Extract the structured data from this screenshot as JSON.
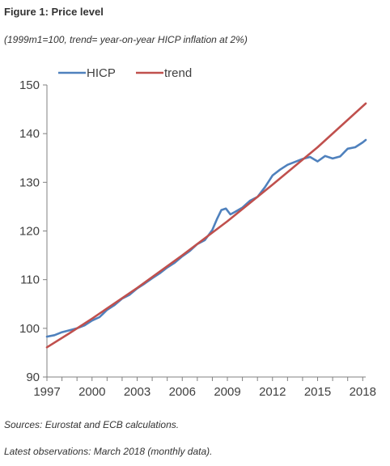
{
  "figure": {
    "title": "Figure 1: Price level",
    "subtitle": "(1999m1=100, trend= year-on-year HICP inflation at 2%)",
    "source": "Sources: Eurostat and ECB calculations.",
    "latest": "Latest observations: March 2018 (monthly data)."
  },
  "colors": {
    "hicp": "#4f81bd",
    "trend": "#c0504d",
    "axis": "#808080",
    "text": "#404040"
  },
  "chart_data": {
    "type": "line",
    "title": "",
    "xlabel": "",
    "ylabel": "",
    "xlim": [
      1997,
      2018.2
    ],
    "ylim": [
      90,
      150
    ],
    "xticks": [
      1997,
      2000,
      2003,
      2006,
      2009,
      2012,
      2015,
      2018
    ],
    "yticks": [
      90,
      100,
      110,
      120,
      130,
      140,
      150
    ],
    "grid": false,
    "legend": "top-left",
    "series": [
      {
        "name": "HICP",
        "x": [
          1997.0,
          1997.5,
          1998.0,
          1998.5,
          1999.0,
          1999.5,
          2000.0,
          2000.5,
          2001.0,
          2001.5,
          2002.0,
          2002.5,
          2003.0,
          2003.5,
          2004.0,
          2004.5,
          2005.0,
          2005.5,
          2006.0,
          2006.5,
          2007.0,
          2007.5,
          2008.0,
          2008.3,
          2008.6,
          2008.9,
          2009.2,
          2009.5,
          2010.0,
          2010.5,
          2011.0,
          2011.5,
          2012.0,
          2012.5,
          2013.0,
          2013.5,
          2014.0,
          2014.5,
          2015.0,
          2015.5,
          2016.0,
          2016.5,
          2017.0,
          2017.5,
          2018.0,
          2018.2
        ],
        "values": [
          98.3,
          98.6,
          99.2,
          99.6,
          100.0,
          100.6,
          101.6,
          102.3,
          103.8,
          104.8,
          106.1,
          106.9,
          108.2,
          109.2,
          110.3,
          111.3,
          112.5,
          113.5,
          114.8,
          115.9,
          117.3,
          118.1,
          120.2,
          122.4,
          124.3,
          124.6,
          123.4,
          123.9,
          124.8,
          126.2,
          127.0,
          129.0,
          131.4,
          132.6,
          133.6,
          134.2,
          134.8,
          135.2,
          134.3,
          135.4,
          134.9,
          135.3,
          136.9,
          137.2,
          138.2,
          138.7
        ]
      },
      {
        "name": "trend",
        "x": [
          1997.0,
          1998.5,
          2000.0,
          2003.0,
          2006.0,
          2009.0,
          2012.0,
          2015.0,
          2018.2
        ],
        "values": [
          96.1,
          99.0,
          102.0,
          108.3,
          115.0,
          122.0,
          129.5,
          137.2,
          146.2
        ]
      }
    ]
  }
}
